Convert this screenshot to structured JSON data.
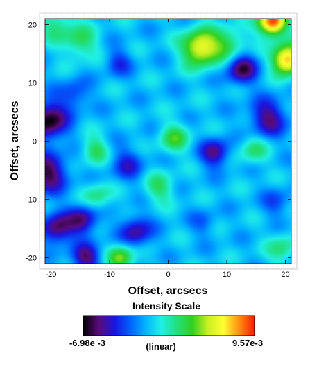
{
  "chart_data": {
    "type": "heatmap",
    "title": "",
    "xlabel": "Offset, arcsecs",
    "ylabel": "Offset, arcsecs",
    "xlim": [
      -21,
      21
    ],
    "ylim": [
      -21,
      21
    ],
    "x_ticks": [
      -20,
      -10,
      0,
      10,
      20
    ],
    "y_ticks": [
      -20,
      -10,
      0,
      10,
      20
    ],
    "x_tick_labels": [
      "-20",
      "-10",
      "0",
      "10",
      "20"
    ],
    "y_tick_labels": [
      "-20",
      "-10",
      "0",
      "10",
      "20"
    ],
    "grid": true,
    "colorbar": {
      "title": "Intensity Scale",
      "min_label": "-6.98e -3",
      "max_label": "9.57e-3",
      "min": -0.00698,
      "max": 0.00957,
      "scale_label": "(linear)",
      "colormap": [
        "#000000",
        "#5a0c78",
        "#1a14e0",
        "#0060ff",
        "#00b4ff",
        "#20f0e6",
        "#20e080",
        "#30d020",
        "#c8f020",
        "#ffff30",
        "#ff9010",
        "#ff1a00"
      ]
    },
    "features": [
      {
        "x": 17.8,
        "y": 20.5,
        "level": 1.0,
        "sigma": 1.7
      },
      {
        "x": 20.3,
        "y": 14.0,
        "level": 0.92,
        "sigma": 1.8
      },
      {
        "x": 5.5,
        "y": 16.0,
        "level": 0.82,
        "sigma": 2.2
      },
      {
        "x": 10.5,
        "y": 16.5,
        "level": 0.6,
        "sigma": 2.0
      },
      {
        "x": -15.0,
        "y": 17.0,
        "level": 0.58,
        "sigma": 2.0
      },
      {
        "x": -19.0,
        "y": 20.0,
        "level": 0.55,
        "sigma": 2.0
      },
      {
        "x": 1.0,
        "y": 0.5,
        "level": 0.6,
        "sigma": 1.8
      },
      {
        "x": -12.5,
        "y": -1.5,
        "level": 0.58,
        "sigma": 1.6
      },
      {
        "x": -12.0,
        "y": -9.5,
        "level": 0.55,
        "sigma": 1.7
      },
      {
        "x": -1.5,
        "y": -8.0,
        "level": 0.56,
        "sigma": 1.8
      },
      {
        "x": 14.5,
        "y": -1.5,
        "level": 0.55,
        "sigma": 1.7
      },
      {
        "x": 19.5,
        "y": -18.5,
        "level": 0.55,
        "sigma": 1.8
      },
      {
        "x": -8.0,
        "y": -20.0,
        "level": 0.68,
        "sigma": 1.6
      },
      {
        "x": -20.5,
        "y": 3.5,
        "level": 0.0,
        "sigma": 2.3
      },
      {
        "x": -20.5,
        "y": -5.5,
        "level": 0.05,
        "sigma": 2.3
      },
      {
        "x": -19.0,
        "y": -15.0,
        "level": 0.07,
        "sigma": 1.9
      },
      {
        "x": -14.5,
        "y": -13.5,
        "level": 0.1,
        "sigma": 1.8
      },
      {
        "x": -14.0,
        "y": -20.0,
        "level": 0.1,
        "sigma": 1.7
      },
      {
        "x": -5.5,
        "y": -15.5,
        "level": 0.12,
        "sigma": 1.9
      },
      {
        "x": 8.0,
        "y": -2.0,
        "level": 0.1,
        "sigma": 1.7
      },
      {
        "x": 12.5,
        "y": 12.5,
        "level": 0.06,
        "sigma": 1.9
      },
      {
        "x": 17.0,
        "y": 4.0,
        "level": 0.1,
        "sigma": 2.2
      },
      {
        "x": -7.0,
        "y": -4.0,
        "level": 0.2,
        "sigma": 2.0
      },
      {
        "x": -16.0,
        "y": 8.0,
        "level": 0.22,
        "sigma": 1.8
      },
      {
        "x": -8.5,
        "y": 13.5,
        "level": 0.22,
        "sigma": 1.6
      },
      {
        "x": 18.5,
        "y": -10.5,
        "level": 0.25,
        "sigma": 1.7
      },
      {
        "x": 6.0,
        "y": -14.0,
        "level": 0.28,
        "sigma": 1.6
      }
    ],
    "background_level": 0.38
  }
}
